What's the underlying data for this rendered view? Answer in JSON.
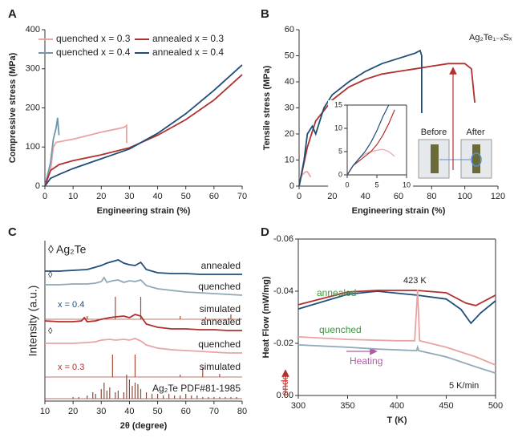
{
  "chart_data": [
    {
      "type": "line",
      "label": "A",
      "xlabel": "Engineering strain (%)",
      "ylabel": "Compressive stress (MPa)",
      "xlim": [
        0,
        70
      ],
      "xticks": [
        0,
        10,
        20,
        30,
        40,
        50,
        60,
        70
      ],
      "ylim": [
        0,
        400
      ],
      "yticks": [
        0,
        100,
        200,
        300,
        400
      ],
      "legend": "upper left",
      "series": [
        {
          "name": "quenched x = 0.3",
          "color": "#e9a3a3",
          "x": [
            0,
            2,
            3,
            4,
            10,
            20,
            28,
            29,
            29
          ],
          "values": [
            0,
            40,
            100,
            112,
            120,
            138,
            150,
            155,
            110
          ]
        },
        {
          "name": "quenched x = 0.4",
          "color": "#6f98a8",
          "x": [
            0,
            2,
            3,
            4,
            4.5,
            5
          ],
          "values": [
            0,
            60,
            120,
            150,
            175,
            130
          ]
        },
        {
          "name": "annealed x = 0.3",
          "color": "#b0302f",
          "x": [
            0,
            2,
            5,
            10,
            20,
            30,
            40,
            50,
            60,
            70
          ],
          "values": [
            0,
            40,
            55,
            65,
            80,
            98,
            130,
            170,
            220,
            285
          ]
        },
        {
          "name": "annealed x = 0.4",
          "color": "#1f4e79",
          "x": [
            0,
            2,
            5,
            10,
            20,
            30,
            40,
            50,
            60,
            70
          ],
          "values": [
            0,
            20,
            30,
            45,
            70,
            95,
            135,
            185,
            245,
            310
          ]
        }
      ]
    },
    {
      "type": "line",
      "label": "B",
      "xlabel": "Engineering strain (%)",
      "ylabel": "Tensile stress (MPa)",
      "xlim": [
        0,
        120
      ],
      "xticks": [
        0,
        20,
        40,
        60,
        80,
        100,
        120
      ],
      "ylim": [
        0,
        60
      ],
      "yticks": [
        0,
        10,
        20,
        30,
        40,
        50,
        60
      ],
      "annotations": [
        {
          "text": "Ag₂Te₁₋ₓSₓ",
          "color": "#222"
        },
        {
          "text": "Before",
          "color": "#222"
        },
        {
          "text": "After",
          "color": "#222"
        }
      ],
      "series": [
        {
          "color": "#e9a3a3",
          "x": [
            0,
            1,
            2,
            3,
            4,
            5,
            6,
            7
          ],
          "values": [
            0,
            3,
            4.5,
            5,
            5.5,
            5.5,
            4.5,
            3.5
          ]
        },
        {
          "color": "#b0302f",
          "x": [
            0,
            5,
            10,
            20,
            30,
            40,
            50,
            60,
            70,
            80,
            90,
            100,
            104,
            106
          ],
          "values": [
            0,
            15,
            25,
            33,
            38,
            41,
            43,
            44,
            45,
            46,
            47,
            47,
            45,
            32
          ]
        },
        {
          "color": "#1f4e79",
          "x": [
            0,
            3,
            5,
            8,
            10,
            15,
            20,
            30,
            40,
            50,
            60,
            70,
            73,
            74,
            74
          ],
          "values": [
            0,
            10,
            20,
            23,
            20,
            30,
            35,
            40,
            44,
            47,
            49,
            51,
            52,
            50,
            28
          ]
        }
      ]
    },
    {
      "type": "line",
      "xlim": [
        0,
        10
      ],
      "xticks": [
        0,
        5,
        10
      ],
      "ylim": [
        0,
        15
      ],
      "yticks": [
        0,
        5,
        10,
        15
      ],
      "series": [
        {
          "color": "#e9a3a3",
          "x": [
            0,
            1,
            2,
            3,
            4,
            5,
            6,
            7,
            8
          ],
          "values": [
            0,
            2,
            3.5,
            4.5,
            5,
            5.3,
            5.5,
            5,
            4
          ]
        },
        {
          "color": "#b0302f",
          "x": [
            0,
            1,
            2,
            3,
            4,
            5,
            6,
            7,
            8
          ],
          "values": [
            0,
            2,
            3,
            4,
            5,
            6.5,
            8.5,
            11,
            14
          ]
        },
        {
          "color": "#1f4e79",
          "x": [
            0,
            1,
            2,
            3,
            4,
            5,
            6,
            7
          ],
          "values": [
            0,
            2,
            3.5,
            5,
            7,
            9.5,
            12.5,
            15
          ]
        }
      ]
    },
    {
      "type": "line",
      "label": "C",
      "xlabel": "2θ (degree)",
      "ylabel": "Intensity (a.u.)",
      "xlim": [
        10,
        80
      ],
      "xticks": [
        10,
        20,
        30,
        40,
        50,
        60,
        70,
        80
      ],
      "ylim": [
        0,
        10
      ],
      "annotations": [
        {
          "text": "◊ Ag₂Te",
          "color": "#222"
        },
        {
          "text": "◊",
          "color": "#222"
        },
        {
          "text": "◊",
          "color": "#222"
        },
        {
          "text": "x = 0.4",
          "color": "#1f4e79"
        },
        {
          "text": "x = 0.3",
          "color": "#b0302f"
        }
      ],
      "series": [
        {
          "name": "annealed",
          "kind": "line",
          "color": "#1f4e79",
          "x": [
            10,
            15,
            20,
            25,
            28,
            30,
            32,
            34,
            36,
            38,
            40,
            42,
            44,
            46,
            50,
            55,
            60,
            65,
            70,
            75,
            80
          ],
          "values": [
            8.1,
            8.1,
            8.15,
            8.2,
            8.35,
            8.45,
            8.6,
            8.7,
            8.8,
            8.6,
            8.5,
            8.45,
            8.65,
            8.2,
            8.0,
            7.95,
            7.95,
            7.9,
            7.9,
            7.9,
            7.9
          ]
        },
        {
          "name": "quenched",
          "kind": "line",
          "color": "#8fa9b8",
          "x": [
            10,
            15,
            20,
            25,
            28,
            30,
            31,
            32,
            34,
            36,
            38,
            40,
            42,
            44,
            46,
            50,
            55,
            60,
            65,
            70,
            75,
            80
          ],
          "values": [
            7.25,
            7.25,
            7.3,
            7.3,
            7.35,
            7.45,
            7.7,
            7.4,
            7.5,
            7.55,
            7.4,
            7.5,
            7.45,
            7.55,
            7.2,
            7.0,
            6.9,
            6.8,
            6.75,
            6.7,
            6.65,
            6.6
          ]
        },
        {
          "name": "simulated",
          "kind": "stick",
          "color": "#a84a36",
          "x": [
            25,
            35,
            44,
            58,
            67,
            76
          ],
          "values": [
            0.2,
            1.4,
            1.4,
            0.2,
            0.15,
            0.3
          ]
        },
        {
          "name": "annealed",
          "kind": "line",
          "color": "#b0302f",
          "x": [
            10,
            15,
            20,
            23,
            24,
            25,
            28,
            30,
            33,
            35,
            38,
            40,
            42,
            44,
            46,
            50,
            55,
            60,
            65,
            70,
            75,
            80
          ],
          "values": [
            5.0,
            4.95,
            4.95,
            5.0,
            5.2,
            4.95,
            5.0,
            5.1,
            5.2,
            5.25,
            5.3,
            5.2,
            5.4,
            5.3,
            4.8,
            4.6,
            4.5,
            4.5,
            4.45,
            4.45,
            4.4,
            4.4
          ]
        },
        {
          "name": "quenched",
          "kind": "line",
          "color": "#e8a5a5",
          "x": [
            10,
            15,
            20,
            25,
            28,
            30,
            33,
            35,
            38,
            40,
            42,
            44,
            46,
            50,
            55,
            60,
            65,
            70,
            75,
            80
          ],
          "values": [
            3.6,
            3.6,
            3.6,
            3.65,
            3.7,
            3.8,
            3.85,
            3.8,
            3.85,
            3.8,
            3.9,
            3.75,
            3.5,
            3.3,
            3.2,
            3.15,
            3.1,
            3.05,
            3.0,
            3.0
          ]
        },
        {
          "name": "simulated",
          "kind": "stick",
          "color": "#a84a36",
          "x": [
            34,
            42,
            58,
            66,
            72
          ],
          "values": [
            1.4,
            1.4,
            0.15,
            0.6,
            0.2
          ]
        },
        {
          "name": "Ag₂Te PDF#81-1985",
          "kind": "stick",
          "color": "#8b4a3a",
          "x": [
            20,
            22,
            25,
            27,
            28,
            30,
            31,
            32,
            33,
            35,
            36,
            38,
            39,
            40,
            41,
            42,
            43,
            44,
            46,
            48,
            50,
            52,
            54,
            56,
            58,
            60,
            62,
            64,
            66,
            68,
            70,
            72,
            74,
            76,
            78
          ],
          "values": [
            0.1,
            0.1,
            0.2,
            0.4,
            0.3,
            0.6,
            1.0,
            0.5,
            0.7,
            0.4,
            0.5,
            0.4,
            1.5,
            1.2,
            0.8,
            1.0,
            0.9,
            0.6,
            0.4,
            0.3,
            0.3,
            0.2,
            0.3,
            0.2,
            0.2,
            0.3,
            0.2,
            0.2,
            0.1,
            0.1,
            0.1,
            0.1,
            0.1,
            0.1,
            0.1
          ]
        }
      ]
    },
    {
      "type": "line",
      "label": "D",
      "xlabel": "T (K)",
      "ylabel": "Heat Flow (mW/mg)",
      "xlim": [
        300,
        500
      ],
      "xticks": [
        300,
        350,
        400,
        450,
        500
      ],
      "ylim": [
        0,
        -0.06
      ],
      "yticks": [
        -0.06,
        -0.04,
        -0.02,
        {
          "value": 0,
          "label": "0.00"
        }
      ],
      "annotations": [
        {
          "text": "annealed",
          "color": "#3a9a3a"
        },
        {
          "text": "quenched",
          "color": "#3a9a3a"
        },
        {
          "text": "423 K",
          "color": "#222"
        },
        {
          "text": "Heating",
          "color": "#b05aa8"
        },
        {
          "text": "endo",
          "color": "#c0392b"
        },
        {
          "text": "5 K/min",
          "color": "#222"
        }
      ],
      "series": [
        {
          "color": "#1f4e79",
          "x": [
            300,
            350,
            380,
            420,
            450,
            465,
            475,
            485,
            500
          ],
          "values": [
            -0.0332,
            -0.0388,
            -0.04,
            -0.0385,
            -0.037,
            -0.033,
            -0.0277,
            -0.0317,
            -0.0363
          ]
        },
        {
          "color": "#b0302f",
          "x": [
            300,
            350,
            380,
            420,
            450,
            470,
            480,
            500
          ],
          "values": [
            -0.0348,
            -0.0397,
            -0.0403,
            -0.0403,
            -0.0394,
            -0.0354,
            -0.0345,
            -0.0385
          ]
        },
        {
          "color": "#e9a3a3",
          "x": [
            300,
            350,
            400,
            418,
            421,
            423,
            450,
            480,
            500
          ],
          "values": [
            -0.0225,
            -0.0215,
            -0.021,
            -0.021,
            -0.0406,
            -0.021,
            -0.0185,
            -0.0148,
            -0.0117
          ]
        },
        {
          "color": "#8fa9b8",
          "x": [
            300,
            350,
            380,
            420,
            421,
            422,
            450,
            480,
            500
          ],
          "values": [
            -0.0194,
            -0.0185,
            -0.0178,
            -0.0172,
            -0.0185,
            -0.0172,
            -0.0148,
            -0.011,
            -0.0086
          ]
        }
      ]
    }
  ]
}
